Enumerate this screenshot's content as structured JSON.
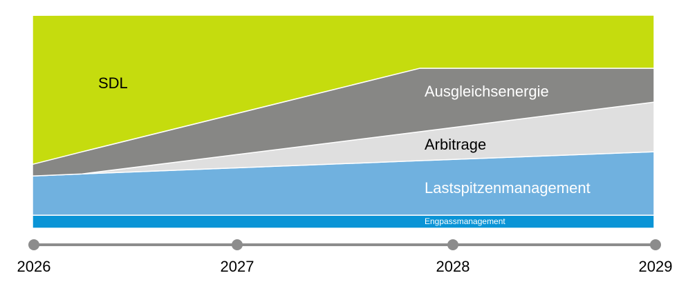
{
  "chart_data": {
    "type": "area",
    "stacked": true,
    "x": [
      2026,
      2026.24,
      2027.87,
      2029
    ],
    "xlim": [
      2026,
      2029
    ],
    "x_tick_labels": [
      "2026",
      "2027",
      "2028",
      "2029"
    ],
    "y_unit": "share of total (%)",
    "ylim": [
      0,
      100
    ],
    "grid": false,
    "legend": "none (inline labels)",
    "series": [
      {
        "name": "Engpassmanagement",
        "color": "#0a94d6",
        "label_color": "#ffffff",
        "values": [
          6.1,
          6.1,
          6.1,
          6.1
        ]
      },
      {
        "name": "Lastspitzenmanagement",
        "color": "#70b1df",
        "label_color": "#ffffff",
        "values": [
          18.4,
          19.4,
          25.6,
          29.8
        ]
      },
      {
        "name": "Arbitrage",
        "color": "#dfdfdf",
        "label_color": "#000000",
        "values": [
          0,
          0,
          13.6,
          23.3
        ]
      },
      {
        "name": "Ausgleichsenergie",
        "color": "#878785",
        "label_color": "#ffffff",
        "values": [
          5.5,
          10.4,
          29.8,
          15.9
        ]
      },
      {
        "name": "SDL",
        "color": "#c5dc0e",
        "label_color": "#000000",
        "values": [
          69.9,
          64.1,
          24.9,
          24.9
        ]
      }
    ],
    "timeline_color": "#8c8c8c"
  }
}
